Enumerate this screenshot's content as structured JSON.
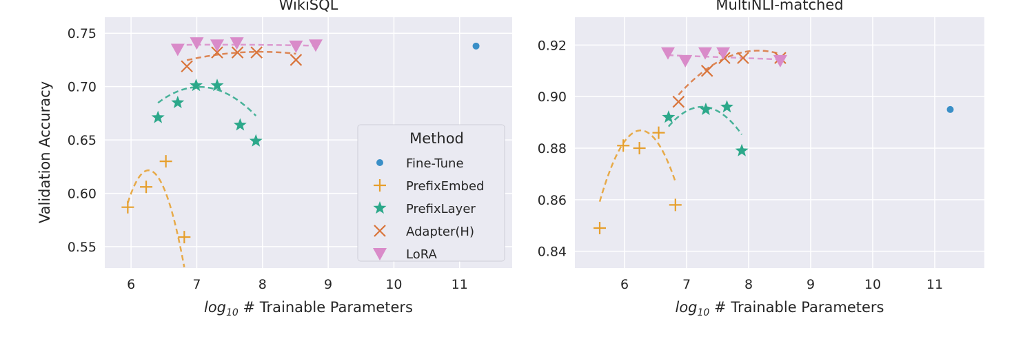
{
  "chart_data": [
    {
      "type": "scatter",
      "title": "WikiSQL",
      "xlabel_prefix": "log",
      "xlabel_sub": "10",
      "xlabel_rest": " # Trainable Parameters",
      "ylabel": "Validation Accuracy",
      "xlim": [
        5.6,
        11.8
      ],
      "ylim": [
        0.53,
        0.765
      ],
      "xticks": [
        6,
        7,
        8,
        9,
        10,
        11
      ],
      "yticks": [
        0.55,
        0.6,
        0.65,
        0.7,
        0.75
      ],
      "ytick_labels": [
        "0.55",
        "0.60",
        "0.65",
        "0.70",
        "0.75"
      ],
      "grid": true,
      "legend": "inside-lower-right",
      "series": [
        {
          "name": "Fine-Tune",
          "marker": "dot",
          "color": "#3a8fc7",
          "x": [
            11.25
          ],
          "y": [
            0.738
          ]
        },
        {
          "name": "PrefixEmbed",
          "marker": "plus",
          "color": "#e69f2c",
          "x": [
            5.95,
            6.23,
            6.53,
            6.81
          ],
          "y": [
            0.587,
            0.606,
            0.63,
            0.559
          ]
        },
        {
          "name": "PrefixLayer",
          "marker": "star",
          "color": "#2ca88a",
          "x": [
            6.41,
            6.71,
            6.99,
            7.31,
            7.66,
            7.9
          ],
          "y": [
            0.671,
            0.685,
            0.701,
            0.701,
            0.664,
            0.649
          ]
        },
        {
          "name": "Adapter(H)",
          "marker": "x",
          "color": "#d9743a",
          "x": [
            6.85,
            7.31,
            7.62,
            7.91,
            8.51
          ],
          "y": [
            0.719,
            0.732,
            0.732,
            0.732,
            0.725
          ]
        },
        {
          "name": "LoRA",
          "marker": "tri",
          "color": "#d98bc9",
          "x": [
            6.71,
            7.0,
            7.31,
            7.61,
            8.51,
            8.81
          ],
          "y": [
            0.735,
            0.741,
            0.739,
            0.741,
            0.738,
            0.739
          ]
        }
      ],
      "trend": [
        {
          "name": "PrefixEmbed",
          "color": "#e69f2c",
          "coef": [
            -0.3067,
            3.8434,
            -11.4193
          ],
          "range": [
            5.95,
            6.81
          ]
        },
        {
          "name": "PrefixLayer",
          "color": "#2ca88a",
          "coef": [
            -0.0369,
            0.5199,
            -1.1316
          ],
          "range": [
            6.41,
            7.9
          ]
        },
        {
          "name": "Adapter(H)",
          "color": "#d9743a",
          "coef": [
            -0.0063,
            0.1004,
            0.3326
          ],
          "range": [
            6.85,
            8.51
          ]
        },
        {
          "name": "LoRA",
          "color": "#d98bc9",
          "coef": [
            -0.0005,
            0.0074,
            0.7119
          ],
          "range": [
            6.71,
            8.81
          ]
        }
      ]
    },
    {
      "type": "scatter",
      "title": "MultiNLI-matched",
      "xlabel_prefix": "log",
      "xlabel_sub": "10",
      "xlabel_rest": " # Trainable Parameters",
      "ylabel": "",
      "xlim": [
        5.2,
        11.8
      ],
      "ylim": [
        0.8335,
        0.9308
      ],
      "xticks": [
        6,
        7,
        8,
        9,
        10,
        11
      ],
      "yticks": [
        0.84,
        0.86,
        0.88,
        0.9,
        0.92
      ],
      "ytick_labels": [
        "0.84",
        "0.86",
        "0.88",
        "0.90",
        "0.92"
      ],
      "grid": true,
      "series": [
        {
          "name": "Fine-Tune",
          "marker": "dot",
          "color": "#3a8fc7",
          "x": [
            11.25
          ],
          "y": [
            0.895
          ]
        },
        {
          "name": "PrefixEmbed",
          "marker": "plus",
          "color": "#e69f2c",
          "x": [
            5.6,
            5.98,
            6.24,
            6.55,
            6.82
          ],
          "y": [
            0.849,
            0.881,
            0.88,
            0.886,
            0.858
          ]
        },
        {
          "name": "PrefixLayer",
          "marker": "star",
          "color": "#2ca88a",
          "x": [
            6.71,
            7.31,
            7.65,
            7.89
          ],
          "y": [
            0.892,
            0.895,
            0.896,
            0.879
          ]
        },
        {
          "name": "Adapter(H)",
          "marker": "x",
          "color": "#d9743a",
          "x": [
            6.87,
            7.33,
            7.61,
            7.91,
            8.51
          ],
          "y": [
            0.898,
            0.91,
            0.915,
            0.915,
            0.915
          ]
        },
        {
          "name": "LoRA",
          "marker": "tri",
          "color": "#d98bc9",
          "x": [
            6.7,
            6.98,
            7.3,
            7.59,
            8.51
          ],
          "y": [
            0.917,
            0.914,
            0.917,
            0.917,
            0.914
          ]
        }
      ],
      "trend": [
        {
          "name": "PrefixEmbed",
          "color": "#e69f2c",
          "coef": [
            -0.0635,
            0.795,
            -1.6014
          ],
          "range": [
            5.6,
            6.82
          ]
        },
        {
          "name": "PrefixLayer",
          "color": "#2ca88a",
          "coef": [
            -0.0262,
            0.3799,
            -0.4811
          ],
          "range": [
            6.71,
            7.89
          ]
        },
        {
          "name": "Adapter(H)",
          "color": "#d9743a",
          "coef": [
            -0.0104,
            0.1696,
            0.2264
          ],
          "range": [
            6.87,
            8.51
          ]
        },
        {
          "name": "LoRA",
          "color": "#d98bc9",
          "coef": [
            0.0,
            -0.0009,
            0.9221
          ],
          "range": [
            6.7,
            8.51
          ]
        }
      ]
    }
  ],
  "legend": {
    "title": "Method",
    "items": [
      {
        "label": "Fine-Tune",
        "marker": "dot",
        "color": "#3a8fc7"
      },
      {
        "label": "PrefixEmbed",
        "marker": "plus",
        "color": "#e69f2c"
      },
      {
        "label": "PrefixLayer",
        "marker": "star",
        "color": "#2ca88a"
      },
      {
        "label": "Adapter(H)",
        "marker": "x",
        "color": "#d9743a"
      },
      {
        "label": "LoRA",
        "marker": "tri",
        "color": "#d98bc9"
      }
    ]
  },
  "style": {
    "plot_bg": "#eaeaf2",
    "grid": "#ffffff"
  }
}
